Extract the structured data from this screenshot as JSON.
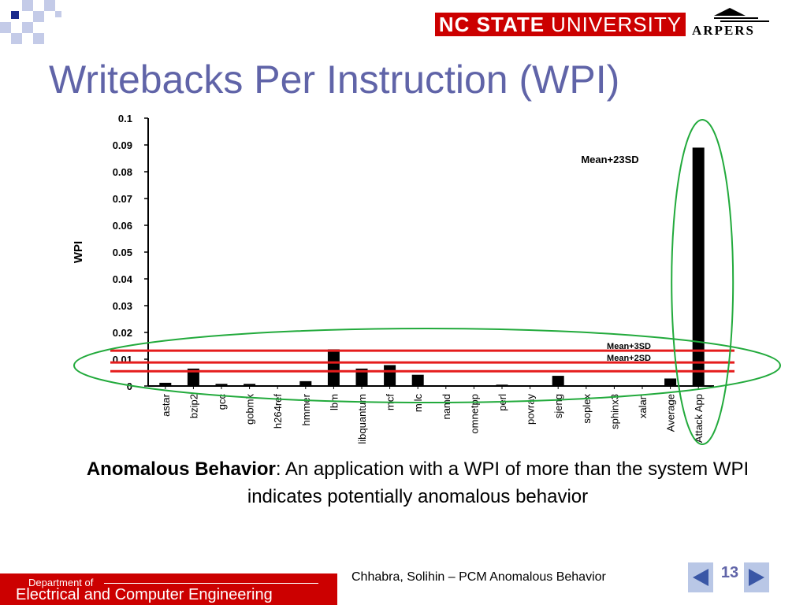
{
  "slide": {
    "title": "Writebacks Per Instruction (WPI)",
    "caption_bold": "Anomalous Behavior",
    "caption_rest": ": An application with a WPI of more than the system WPI indicates potentially anomalous behavior",
    "credit": "Chhabra, Solihin – PCM Anomalous Behavior",
    "page_number": "13",
    "prev_icon": "left-arrow-icon",
    "next_icon": "right-arrow-icon"
  },
  "logos": {
    "ncsu_bold": "NC STATE",
    "ncsu_rest": "UNIVERSITY",
    "arpers": "ARPERS"
  },
  "footer": {
    "dept_small": "Department of",
    "dept_big": "Electrical and Computer Engineering"
  },
  "colors": {
    "title": "#6064a8",
    "brand_red": "#cc0000",
    "threshold_line": "#e51c1c",
    "highlight_ellipse": "#22aa3c",
    "nav_button": "#b9c7e6",
    "nav_arrow": "#3a57a6"
  },
  "chart_data": {
    "type": "bar",
    "title": "",
    "xlabel": "",
    "ylabel": "WPI",
    "ylim": [
      0,
      0.1
    ],
    "yticks": [
      "0",
      "0.01",
      "0.02",
      "0.03",
      "0.04",
      "0.05",
      "0.06",
      "0.07",
      "0.08",
      "0.09",
      "0.1"
    ],
    "grid": false,
    "categories": [
      "astar",
      "bzip2",
      "gcc",
      "gobmk",
      "h264ref",
      "hmmer",
      "lbm",
      "libquantum",
      "mcf",
      "milc",
      "namd",
      "omnetpp",
      "perl",
      "povray",
      "sjeng",
      "soplex",
      "sphinx3",
      "xalan",
      "Average",
      "Attack App"
    ],
    "values": [
      0.0012,
      0.0065,
      0.0008,
      0.0008,
      0.0,
      0.0018,
      0.0137,
      0.0065,
      0.0078,
      0.0042,
      0.0002,
      0.0,
      0.0005,
      0.0,
      0.0038,
      0.0003,
      0.0003,
      0.0003,
      0.0028,
      0.089
    ],
    "reference_lines": [
      {
        "label": "Mean+3SD",
        "y": 0.0132
      },
      {
        "label": "Mean+2SD",
        "y": 0.0088
      },
      {
        "label": "",
        "y": 0.0055
      }
    ],
    "annotations": [
      {
        "text": "Mean+23SD",
        "target": "Attack App"
      }
    ]
  }
}
